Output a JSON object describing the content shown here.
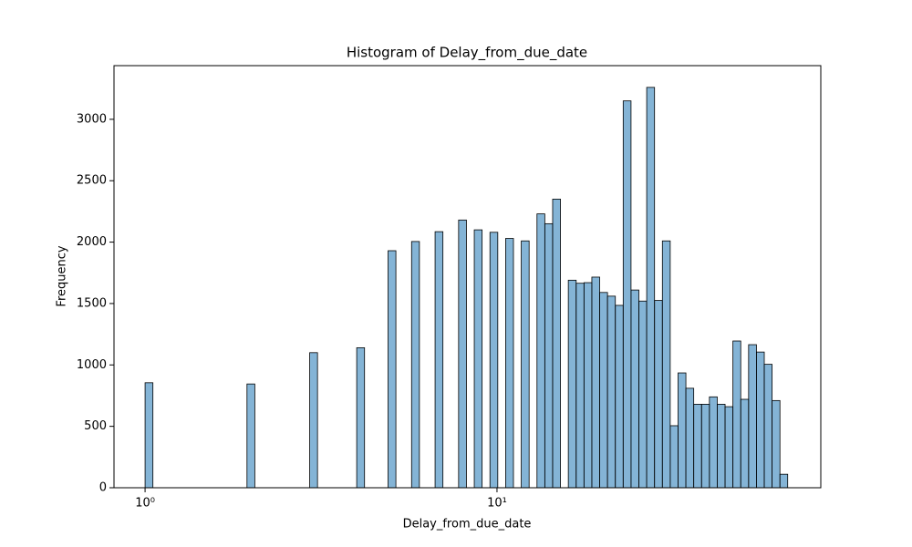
{
  "chart_data": {
    "type": "histogram",
    "title": "Histogram of Delay_from_due_date",
    "x_label": "Delay_from_due_date",
    "y_label": "Frequency",
    "x_scale": "log",
    "color": "#1f77b4",
    "edge_color": "#000000",
    "xlim": [
      0.816,
      83.2
    ],
    "ylim": [
      0,
      3437
    ],
    "xticks": [
      {
        "value": 1,
        "label": "10⁰"
      },
      {
        "value": 10,
        "label": "10¹"
      }
    ],
    "yticks": [
      0,
      500,
      1000,
      1500,
      2000,
      2500,
      3000
    ],
    "bins": [
      1,
      1.0526,
      1.108,
      1.1663,
      1.2277,
      1.2923,
      1.3603,
      1.4319,
      1.5072,
      1.5865,
      1.67,
      1.7579,
      1.8504,
      1.9478,
      2.0502,
      2.1581,
      2.2717,
      2.3912,
      2.5171,
      2.6495,
      2.7889,
      2.9357,
      3.0902,
      3.2528,
      3.424,
      3.6042,
      3.7938,
      3.9935,
      4.2036,
      4.4248,
      4.6577,
      4.9028,
      5.1608,
      5.4323,
      5.7182,
      6.0191,
      6.3358,
      6.6692,
      7.0202,
      7.3896,
      7.7784,
      8.1877,
      8.6186,
      9.0721,
      9.5495,
      10.052,
      10.581,
      11.137,
      11.723,
      12.34,
      12.99,
      13.673,
      14.393,
      15.15,
      15.947,
      16.787,
      17.67,
      18.6,
      19.578,
      20.608,
      21.693,
      22.834,
      24.036,
      25.301,
      26.632,
      28.034,
      29.509,
      31.062,
      32.696,
      34.417,
      36.228,
      38.134,
      40.141,
      42.253,
      44.477,
      46.817,
      49.281,
      51.874,
      54.604,
      57.477,
      60.502,
      63.686,
      67.0
    ],
    "values": [
      855,
      0,
      0,
      0,
      0,
      0,
      0,
      0,
      0,
      0,
      0,
      0,
      0,
      845,
      0,
      0,
      0,
      0,
      0,
      0,
      0,
      1100,
      0,
      0,
      0,
      0,
      0,
      1140,
      0,
      0,
      0,
      1930,
      0,
      0,
      2005,
      0,
      0,
      2085,
      0,
      0,
      2180,
      0,
      2100,
      0,
      2080,
      0,
      2030,
      0,
      2010,
      0,
      2230,
      2150,
      2350,
      0,
      1690,
      1665,
      1670,
      1715,
      1590,
      1560,
      1485,
      3150,
      1610,
      1520,
      3260,
      1525,
      2010,
      505,
      935,
      810,
      680,
      680,
      740,
      680,
      660,
      1195,
      720,
      1165,
      1105,
      1005,
      710,
      110
    ]
  }
}
